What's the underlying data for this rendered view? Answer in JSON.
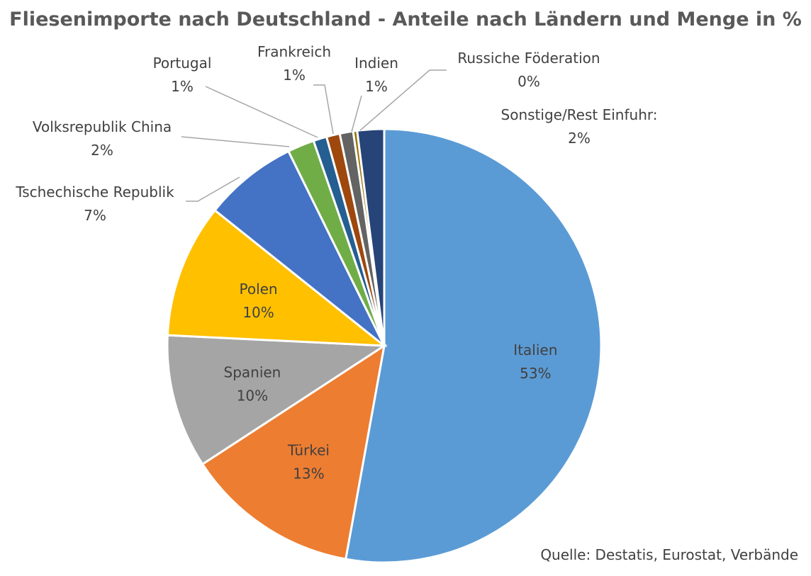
{
  "chart_data": {
    "type": "pie",
    "title": "Fliesenimporte nach Deutschland - Anteile nach Ländern und Menge in %",
    "source": "Quelle: Destatis, Eurostat, Verbände",
    "start_angle_deg": 0,
    "direction": "clockwise",
    "legend": "none",
    "slices": [
      {
        "name": "Italien",
        "value": 53,
        "label": "53%",
        "color": "#5b9bd5"
      },
      {
        "name": "Türkei",
        "value": 13,
        "label": "13%",
        "color": "#ed7d31"
      },
      {
        "name": "Spanien",
        "value": 10,
        "label": "10%",
        "color": "#a5a5a5"
      },
      {
        "name": "Polen",
        "value": 10,
        "label": "10%",
        "color": "#ffc000"
      },
      {
        "name": "Tschechische Republik",
        "value": 7,
        "label": "7%",
        "color": "#4472c4"
      },
      {
        "name": "Volksrepublik China",
        "value": 2,
        "label": "2%",
        "color": "#70ad47"
      },
      {
        "name": "Portugal",
        "value": 1,
        "label": "1%",
        "color": "#255e91"
      },
      {
        "name": "Frankreich",
        "value": 1,
        "label": "1%",
        "color": "#9e480e"
      },
      {
        "name": "Indien",
        "value": 1,
        "label": "1%",
        "color": "#636363"
      },
      {
        "name": "Russiche Föderation",
        "value": 0.3,
        "label": "0%",
        "color": "#997300"
      },
      {
        "name": "Sonstige/Rest Einfuhr:",
        "value": 2,
        "label": "2%",
        "color": "#264478"
      }
    ]
  }
}
